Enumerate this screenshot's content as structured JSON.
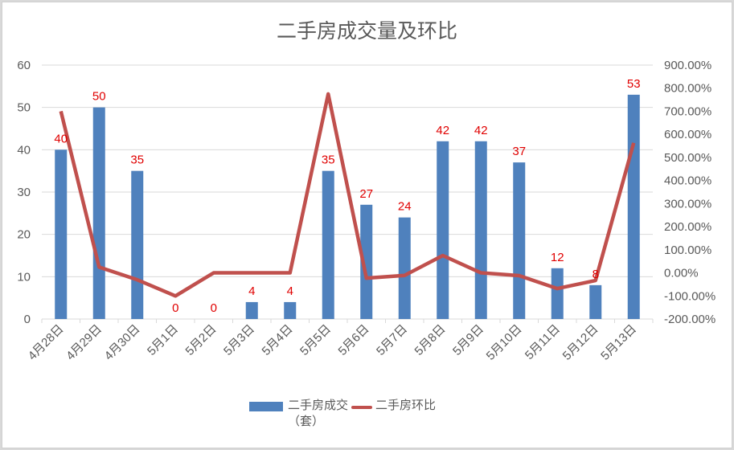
{
  "chart_data": {
    "type": "bar+line",
    "title": "二手房成交量及环比",
    "categories": [
      "4月28日",
      "4月29日",
      "4月30日",
      "5月1日",
      "5月2日",
      "5月3日",
      "5月4日",
      "5月5日",
      "5月6日",
      "5月7日",
      "5月8日",
      "5月9日",
      "5月10日",
      "5月11日",
      "5月12日",
      "5月13日"
    ],
    "series": [
      {
        "name": "二手房成交（套）",
        "type": "bar",
        "axis": "left",
        "color": "#4f81bd",
        "values": [
          40,
          50,
          35,
          0,
          0,
          4,
          4,
          35,
          27,
          24,
          42,
          42,
          37,
          12,
          8,
          53
        ]
      },
      {
        "name": "二手房环比",
        "type": "line",
        "axis": "right",
        "color": "#c0504d",
        "unit": "%",
        "values": [
          700,
          25,
          -30,
          -100,
          0,
          0,
          0,
          775,
          -23,
          -11,
          75,
          0,
          -12,
          -68,
          -33,
          563
        ]
      }
    ],
    "y_left": {
      "min": 0,
      "max": 60,
      "ticks": [
        "0",
        "10",
        "20",
        "30",
        "40",
        "50",
        "60"
      ]
    },
    "y_right": {
      "min": -200,
      "max": 900,
      "ticks": [
        "-200.00%",
        "-100.00%",
        "0.00%",
        "100.00%",
        "200.00%",
        "300.00%",
        "400.00%",
        "500.00%",
        "600.00%",
        "700.00%",
        "800.00%",
        "900.00%"
      ]
    },
    "data_labels": [
      "40",
      "50",
      "35",
      "0",
      "0",
      "4",
      "4",
      "35",
      "27",
      "24",
      "42",
      "42",
      "37",
      "12",
      "8",
      "53"
    ],
    "grid": true,
    "legend_position": "bottom"
  },
  "legend": {
    "bar_label_line1": "二手房成交",
    "bar_label_line2": "（套）",
    "line_label": "二手房环比"
  }
}
